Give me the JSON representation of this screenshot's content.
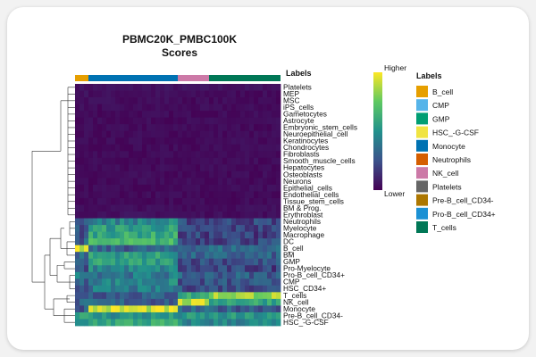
{
  "chart_data": {
    "type": "heatmap",
    "title": "PBMC20K_PMBC100K",
    "subtitle": "Scores",
    "annotation_title": "Labels",
    "colorbar": {
      "high_label": "Higher",
      "low_label": "Lower"
    },
    "palette": [
      "#440154",
      "#3b528b",
      "#21918c",
      "#5ec962",
      "#fde725"
    ],
    "legend_title": "Labels",
    "labels": [
      {
        "name": "B_cell",
        "color": "#e69f00"
      },
      {
        "name": "CMP",
        "color": "#56b4e9"
      },
      {
        "name": "GMP",
        "color": "#009e73"
      },
      {
        "name": "HSC_-G-CSF",
        "color": "#f0e442"
      },
      {
        "name": "Monocyte",
        "color": "#0072b2"
      },
      {
        "name": "Neutrophils",
        "color": "#d55e00"
      },
      {
        "name": "NK_cell",
        "color": "#cc79a7"
      },
      {
        "name": "Platelets",
        "color": "#666666"
      },
      {
        "name": "Pre-B_cell_CD34-",
        "color": "#ad7700"
      },
      {
        "name": "Pro-B_cell_CD34+",
        "color": "#1c91d4"
      },
      {
        "name": "T_cells",
        "color": "#007756"
      }
    ],
    "column_groups": [
      {
        "label": "B_cell",
        "count": 3
      },
      {
        "label": "Monocyte",
        "count": 20
      },
      {
        "label": "NK_cell",
        "count": 7
      },
      {
        "label": "T_cells",
        "count": 16
      }
    ],
    "rows": [
      {
        "name": "Platelets",
        "values": [
          0.05,
          0.05,
          0.05,
          0.05
        ]
      },
      {
        "name": "MEP",
        "values": [
          0.05,
          0.04,
          0.03,
          0.03
        ]
      },
      {
        "name": "MSC",
        "values": [
          0.04,
          0.04,
          0.03,
          0.03
        ]
      },
      {
        "name": "iPS_cells",
        "values": [
          0.04,
          0.03,
          0.03,
          0.03
        ]
      },
      {
        "name": "Gametocytes",
        "values": [
          0.03,
          0.03,
          0.03,
          0.03
        ]
      },
      {
        "name": "Astrocyte",
        "values": [
          0.03,
          0.03,
          0.03,
          0.03
        ]
      },
      {
        "name": "Embryonic_stem_cells",
        "values": [
          0.03,
          0.03,
          0.03,
          0.03
        ]
      },
      {
        "name": "Neuroepithelial_cell",
        "values": [
          0.03,
          0.03,
          0.03,
          0.03
        ]
      },
      {
        "name": "Keratinocytes",
        "values": [
          0.03,
          0.03,
          0.03,
          0.03
        ]
      },
      {
        "name": "Chondrocytes",
        "values": [
          0.03,
          0.03,
          0.03,
          0.03
        ]
      },
      {
        "name": "Fibroblasts",
        "values": [
          0.03,
          0.03,
          0.03,
          0.03
        ]
      },
      {
        "name": "Smooth_muscle_cells",
        "values": [
          0.03,
          0.03,
          0.03,
          0.03
        ]
      },
      {
        "name": "Hepatocytes",
        "values": [
          0.03,
          0.03,
          0.03,
          0.03
        ]
      },
      {
        "name": "Osteoblasts",
        "values": [
          0.03,
          0.03,
          0.03,
          0.03
        ]
      },
      {
        "name": "Neurons",
        "values": [
          0.03,
          0.03,
          0.03,
          0.03
        ]
      },
      {
        "name": "Epithelial_cells",
        "values": [
          0.03,
          0.03,
          0.03,
          0.03
        ]
      },
      {
        "name": "Endothelial_cells",
        "values": [
          0.03,
          0.03,
          0.03,
          0.03
        ]
      },
      {
        "name": "Tissue_stem_cells",
        "values": [
          0.03,
          0.03,
          0.03,
          0.03
        ]
      },
      {
        "name": "BM & Prog.",
        "values": [
          0.04,
          0.04,
          0.04,
          0.04
        ]
      },
      {
        "name": "Erythroblast",
        "values": [
          0.05,
          0.05,
          0.04,
          0.04
        ]
      },
      {
        "name": "Neutrophils",
        "values": [
          0.3,
          0.45,
          0.22,
          0.22
        ]
      },
      {
        "name": "Myelocyte",
        "values": [
          0.25,
          0.55,
          0.2,
          0.2
        ]
      },
      {
        "name": "Macrophage",
        "values": [
          0.25,
          0.6,
          0.2,
          0.2
        ]
      },
      {
        "name": "DC",
        "values": [
          0.3,
          0.65,
          0.22,
          0.22
        ]
      },
      {
        "name": "B_cell",
        "values": [
          0.92,
          0.3,
          0.35,
          0.35
        ]
      },
      {
        "name": "BM",
        "values": [
          0.35,
          0.55,
          0.3,
          0.3
        ]
      },
      {
        "name": "GMP",
        "values": [
          0.3,
          0.55,
          0.25,
          0.25
        ]
      },
      {
        "name": "Pro-Myelocyte",
        "values": [
          0.25,
          0.45,
          0.2,
          0.2
        ]
      },
      {
        "name": "Pro-B_cell_CD34+",
        "values": [
          0.5,
          0.4,
          0.3,
          0.3
        ]
      },
      {
        "name": "CMP",
        "values": [
          0.3,
          0.45,
          0.25,
          0.25
        ]
      },
      {
        "name": "HSC_CD34+",
        "values": [
          0.3,
          0.4,
          0.25,
          0.25
        ]
      },
      {
        "name": "T_cells",
        "values": [
          0.3,
          0.3,
          0.6,
          0.85
        ]
      },
      {
        "name": "NK_cell",
        "values": [
          0.3,
          0.3,
          0.88,
          0.6
        ]
      },
      {
        "name": "Monocyte",
        "values": [
          0.3,
          0.92,
          0.3,
          0.3
        ]
      },
      {
        "name": "Pre-B_cell_CD34-",
        "values": [
          0.55,
          0.5,
          0.5,
          0.5
        ]
      },
      {
        "name": "HSC_-G-CSF",
        "values": [
          0.45,
          0.6,
          0.45,
          0.45
        ]
      }
    ],
    "grid": false
  }
}
